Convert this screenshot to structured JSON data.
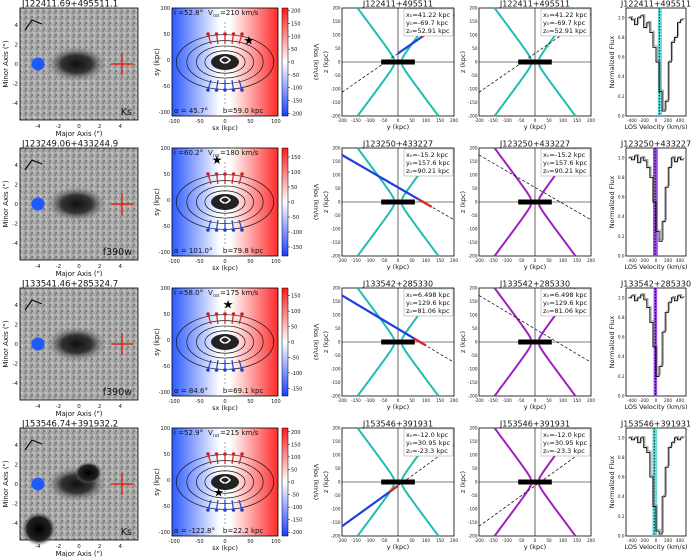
{
  "chart_data": {
    "type": "composite-figure",
    "rows": [
      {
        "id": "J122411+495511",
        "image": {
          "title": "J122411.69+495511.1",
          "band": "Ks",
          "xlabel": "Major Axis (\")",
          "ylabel": "Minor Axis (\")",
          "xticks": [
            "-4",
            "-2",
            "0",
            "2",
            "4"
          ],
          "yticks": [
            "-4",
            "-2",
            "0",
            "2",
            "4"
          ]
        },
        "disk": {
          "inclination_label": "i =52.8°",
          "vrot_label": "V",
          "vrot_sub": "rot",
          "vrot_value": "=210 km/s",
          "alpha_label": "α = 45.7°",
          "b_label": "b=59.0 kpc",
          "xlabel": "sx (kpc)",
          "ylabel": "sy (kpc)",
          "xticks": [
            "-100",
            "-50",
            "0",
            "50",
            "100"
          ],
          "yticks": [
            "-100",
            "-50",
            "0",
            "50",
            "100"
          ],
          "sightline": [
            45,
            40
          ]
        },
        "colorbar": {
          "label": "Vlos (km/s)",
          "ticks": [
            "200",
            "150",
            "100",
            "50",
            "0",
            "-50",
            "-100",
            "-150",
            "-200"
          ],
          "range": [
            -210,
            210
          ]
        },
        "cone1": {
          "title": "J122411+495511",
          "x0": "x₀=41.22 kpc",
          "y0": "y₀=-69.7 kpc",
          "z0": "z₀=52.91 kpc",
          "xlabel": "y (kpc)",
          "ylabel": "z (kpc)",
          "cone_color": "#1fbfb0",
          "line_slope": 0.72,
          "seg": [
            0,
            100
          ]
        },
        "cone2": {
          "title": "J122411+495511",
          "x0": "x₀=41.22 kpc",
          "y0": "y₀=-69.7 kpc",
          "z0": "z₀=52.91 kpc",
          "xlabel": "y (kpc)",
          "ylabel": "z (kpc)",
          "cone_color": "#1fbfb0",
          "line_slope": 0.72
        },
        "spectrum": {
          "title": "J122411+495511",
          "xlabel": "LOS Velocity (km/s)",
          "ylabel": "Normalized Flux",
          "xticks": [
            "-400",
            "-200",
            "0",
            "200",
            "400"
          ],
          "yticks": [
            "1.0",
            "0.8",
            "0.6",
            "0.4",
            "0.2",
            "0.0"
          ],
          "band": [
            30,
            100
          ],
          "center": 55,
          "band_color": "#4dd6d6",
          "flux": [
            1.0,
            0.98,
            0.93,
            1.0,
            1.02,
            0.9,
            0.95,
            0.85,
            0.7,
            0.55,
            0.25,
            0.05,
            0.15,
            0.55,
            0.75,
            0.8,
            0.95,
            0.98
          ]
        }
      },
      {
        "id": "J123250+433227",
        "image": {
          "title": "J123249.06+433244.9",
          "band": "f390w",
          "xlabel": "Major Axis (\")",
          "ylabel": "Minor Axis (\")",
          "xticks": [
            "-4",
            "-2",
            "0",
            "2",
            "4"
          ],
          "yticks": [
            "-4",
            "-2",
            "0",
            "2",
            "4"
          ]
        },
        "disk": {
          "inclination_label": "i =60.2°",
          "vrot_label": "V",
          "vrot_sub": "rot",
          "vrot_value": "=180 km/s",
          "alpha_label": "α = 101.0°",
          "b_label": "b=79.8 kpc",
          "xlabel": "sx (kpc)",
          "ylabel": "sy (kpc)",
          "xticks": [
            "-100",
            "-50",
            "0",
            "50",
            "100"
          ],
          "yticks": [
            "-100",
            "-50",
            "0",
            "50",
            "100"
          ],
          "sightline": [
            -15,
            78
          ]
        },
        "colorbar": {
          "label": "Vlos (km/s)",
          "ticks": [
            "150",
            "100",
            "50",
            "0",
            "-50",
            "-100",
            "-150"
          ],
          "range": [
            -180,
            180
          ]
        },
        "cone1": {
          "title": "J123250+433227",
          "x0": "x₀=-15.2 kpc",
          "y0": "y₀=157.6 kpc",
          "z0": "z₀=90.21 kpc",
          "xlabel": "y (kpc)",
          "ylabel": "z (kpc)",
          "cone_color": "#1fbfb0",
          "line_slope": -0.6,
          "seg": [
            -200,
            120
          ]
        },
        "cone2": {
          "title": "J123250+433227",
          "x0": "x₀=-15.2 kpc",
          "y0": "y₀=157.6 kpc",
          "z0": "z₀=90.21 kpc",
          "xlabel": "y (kpc)",
          "ylabel": "z (kpc)",
          "cone_color": "#a020c0",
          "line_slope": -0.6
        },
        "spectrum": {
          "title": "J123250+433227",
          "xlabel": "LOS Velocity (km/s)",
          "ylabel": "Normalized Flux",
          "xticks": [
            "-400",
            "-200",
            "0",
            "200",
            "400"
          ],
          "yticks": [
            "1.0",
            "0.8",
            "0.6",
            "0.4",
            "0.2",
            "0.0"
          ],
          "band": [
            -50,
            30
          ],
          "center": -15,
          "band_color": "#8a2be2",
          "flux": [
            1.0,
            0.98,
            1.02,
            0.95,
            1.0,
            0.97,
            0.9,
            0.8,
            0.55,
            0.25,
            0.15,
            0.35,
            0.7,
            0.9,
            1.0,
            0.96,
            1.0,
            0.98
          ]
        }
      },
      {
        "id": "J133542+285330",
        "image": {
          "title": "J133541.46+285324.7",
          "band": "f390w",
          "xlabel": "Major Axis (\")",
          "ylabel": "Minor Axis (\")",
          "xticks": [
            "-4",
            "-2",
            "0",
            "2",
            "4"
          ],
          "yticks": [
            "-4",
            "-2",
            "0",
            "2",
            "4"
          ]
        },
        "disk": {
          "inclination_label": "i =58.0°",
          "vrot_label": "V",
          "vrot_sub": "rot",
          "vrot_value": "=175 km/s",
          "alpha_label": "α = 84.6°",
          "b_label": "b=69.1 kpc",
          "xlabel": "sx (kpc)",
          "ylabel": "sy (kpc)",
          "xticks": [
            "-100",
            "-50",
            "0",
            "50",
            "100"
          ],
          "yticks": [
            "-100",
            "-50",
            "0",
            "50",
            "100"
          ],
          "sightline": [
            6,
            69
          ]
        },
        "colorbar": {
          "label": "Vlos (km/s)",
          "ticks": [
            "150",
            "100",
            "50",
            "0",
            "-50",
            "-100",
            "-150"
          ],
          "range": [
            -175,
            175
          ]
        },
        "cone1": {
          "title": "J133542+285330",
          "x0": "x₀=6.498 kpc",
          "y0": "y₀=129.6 kpc",
          "z0": "z₀=81.06 kpc",
          "xlabel": "y (kpc)",
          "ylabel": "z (kpc)",
          "cone_color": "#1fbfb0",
          "line_slope": -0.62,
          "seg": [
            -200,
            100
          ]
        },
        "cone2": {
          "title": "J133542+285330",
          "x0": "x₀=6.498 kpc",
          "y0": "y₀=129.6 kpc",
          "z0": "z₀=81.06 kpc",
          "xlabel": "y (kpc)",
          "ylabel": "z (kpc)",
          "cone_color": "#a020c0",
          "line_slope": -0.62
        },
        "spectrum": {
          "title": "J133542+285330",
          "xlabel": "LOS Velocity (km/s)",
          "ylabel": "Normalized Flux",
          "xticks": [
            "-400",
            "-200",
            "0",
            "200",
            "400"
          ],
          "yticks": [
            "1.0",
            "0.8",
            "0.6",
            "0.4",
            "0.2",
            "0.0"
          ],
          "band": [
            -40,
            20
          ],
          "center": -10,
          "band_color": "#8a2be2",
          "flux": [
            1.0,
            1.02,
            0.97,
            1.0,
            1.03,
            0.98,
            0.9,
            0.75,
            0.5,
            0.2,
            0.3,
            0.65,
            0.85,
            0.95,
            1.0,
            0.97,
            1.02,
            1.0
          ]
        }
      },
      {
        "id": "J153546+391931",
        "image": {
          "title": "J153546.74+391932.2",
          "band": "Ks",
          "xlabel": "Major Axis (\")",
          "ylabel": "Minor Axis (\")",
          "xticks": [
            "-4",
            "-2",
            "0",
            "2",
            "4"
          ],
          "yticks": [
            "-4",
            "-2",
            "0",
            "2",
            "4"
          ]
        },
        "disk": {
          "inclination_label": "i =52.9°",
          "vrot_label": "V",
          "vrot_sub": "rot",
          "vrot_value": "=215 km/s",
          "alpha_label": "α = -122.8°",
          "b_label": "b=22.2 kpc",
          "xlabel": "sx (kpc)",
          "ylabel": "sy (kpc)",
          "xticks": [
            "-100",
            "-50",
            "0",
            "50",
            "100"
          ],
          "yticks": [
            "-100",
            "-50",
            "0",
            "50",
            "100"
          ],
          "sightline": [
            -12,
            -19
          ]
        },
        "colorbar": {
          "label": "Vlos (km/s)",
          "ticks": [
            "200",
            "150",
            "100",
            "50",
            "0",
            "-50",
            "-100",
            "-150",
            "-200"
          ],
          "range": [
            -215,
            215
          ]
        },
        "cone1": {
          "title": "J153546+391931",
          "x0": "x₀=-12.0 kpc",
          "y0": "y₀=30.95 kpc",
          "z0": "z₀=-23.3 kpc",
          "xlabel": "y (kpc)",
          "ylabel": "z (kpc)",
          "cone_color": "#1fbfb0",
          "line_slope": 0.75,
          "seg": [
            -200,
            0
          ]
        },
        "cone2": {
          "title": "J153546+391931",
          "x0": "x₀=-12.0 kpc",
          "y0": "y₀=30.95 kpc",
          "z0": "z₀=-23.3 kpc",
          "xlabel": "y (kpc)",
          "ylabel": "z (kpc)",
          "cone_color": "#a020c0",
          "line_slope": 0.75
        },
        "spectrum": {
          "title": "J153546+391931",
          "xlabel": "LOS Velocity (km/s)",
          "ylabel": "Normalized Flux",
          "xticks": [
            "-400",
            "-200",
            "0",
            "200",
            "400"
          ],
          "yticks": [
            "1.0",
            "0.8",
            "0.6",
            "0.4",
            "0.2",
            "0.0"
          ],
          "band": [
            -60,
            20
          ],
          "center": -30,
          "band_color": "#4dd6d6",
          "flux": [
            1.0,
            0.98,
            1.0,
            0.95,
            1.0,
            0.9,
            0.85,
            0.6,
            0.3,
            0.05,
            0.02,
            0.4,
            0.7,
            0.9,
            0.95,
            1.0,
            0.98,
            1.0
          ]
        }
      }
    ]
  }
}
